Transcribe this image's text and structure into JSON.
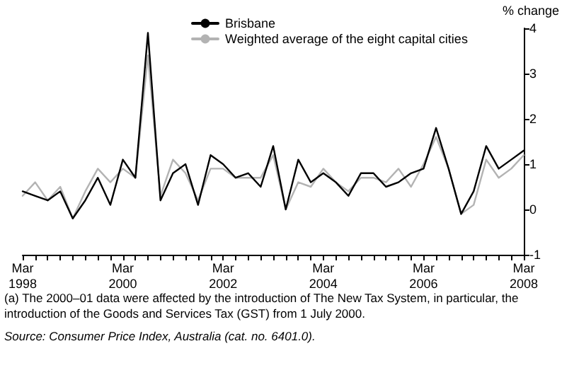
{
  "chart_data": {
    "type": "line",
    "ylabel": "% change",
    "categories": [
      "Mar\n1998",
      null,
      null,
      null,
      null,
      null,
      null,
      null,
      "Mar\n2000",
      null,
      null,
      null,
      null,
      null,
      null,
      null,
      "Mar\n2002",
      null,
      null,
      null,
      null,
      null,
      null,
      null,
      "Mar\n2004",
      null,
      null,
      null,
      null,
      null,
      null,
      null,
      "Mar\n2006",
      null,
      null,
      null,
      null,
      null,
      null,
      null,
      "Mar\n2008"
    ],
    "series": [
      {
        "name": "Brisbane",
        "color": "#000000",
        "values": [
          0.4,
          0.3,
          0.2,
          0.4,
          -0.2,
          0.2,
          0.7,
          0.1,
          1.1,
          0.7,
          3.9,
          0.2,
          0.8,
          1.0,
          0.1,
          1.2,
          1.0,
          0.7,
          0.8,
          0.5,
          1.4,
          0.0,
          1.1,
          0.6,
          0.8,
          0.6,
          0.3,
          0.8,
          0.8,
          0.5,
          0.6,
          0.8,
          0.9,
          1.8,
          0.9,
          -0.1,
          0.4,
          1.4,
          0.9,
          1.1,
          1.3
        ]
      },
      {
        "name": "Weighted average of the eight capital cities",
        "color": "#b3b3b3",
        "values": [
          0.3,
          0.6,
          0.2,
          0.5,
          -0.2,
          0.4,
          0.9,
          0.6,
          0.9,
          0.7,
          3.4,
          0.3,
          1.1,
          0.8,
          0.2,
          0.9,
          0.9,
          0.7,
          0.7,
          0.7,
          1.2,
          0.0,
          0.6,
          0.5,
          0.9,
          0.6,
          0.4,
          0.7,
          0.7,
          0.6,
          0.9,
          0.5,
          1.0,
          1.6,
          0.9,
          -0.1,
          0.1,
          1.1,
          0.7,
          0.9,
          1.2
        ]
      }
    ],
    "ylim": [
      -1,
      4
    ],
    "yticks": [
      -1,
      0,
      1,
      2,
      3,
      4
    ],
    "grid": false,
    "legend": "top",
    "marker": "none",
    "line_style": "solid",
    "annotations": [
      "(a) The 2000–01 data were affected by the introduction of The New Tax System, in particular, the introduction of the Goods and Services Tax (GST) from 1 July 2000.",
      "Source: Consumer Price Index, Australia (cat. no. 6401.0)."
    ]
  }
}
